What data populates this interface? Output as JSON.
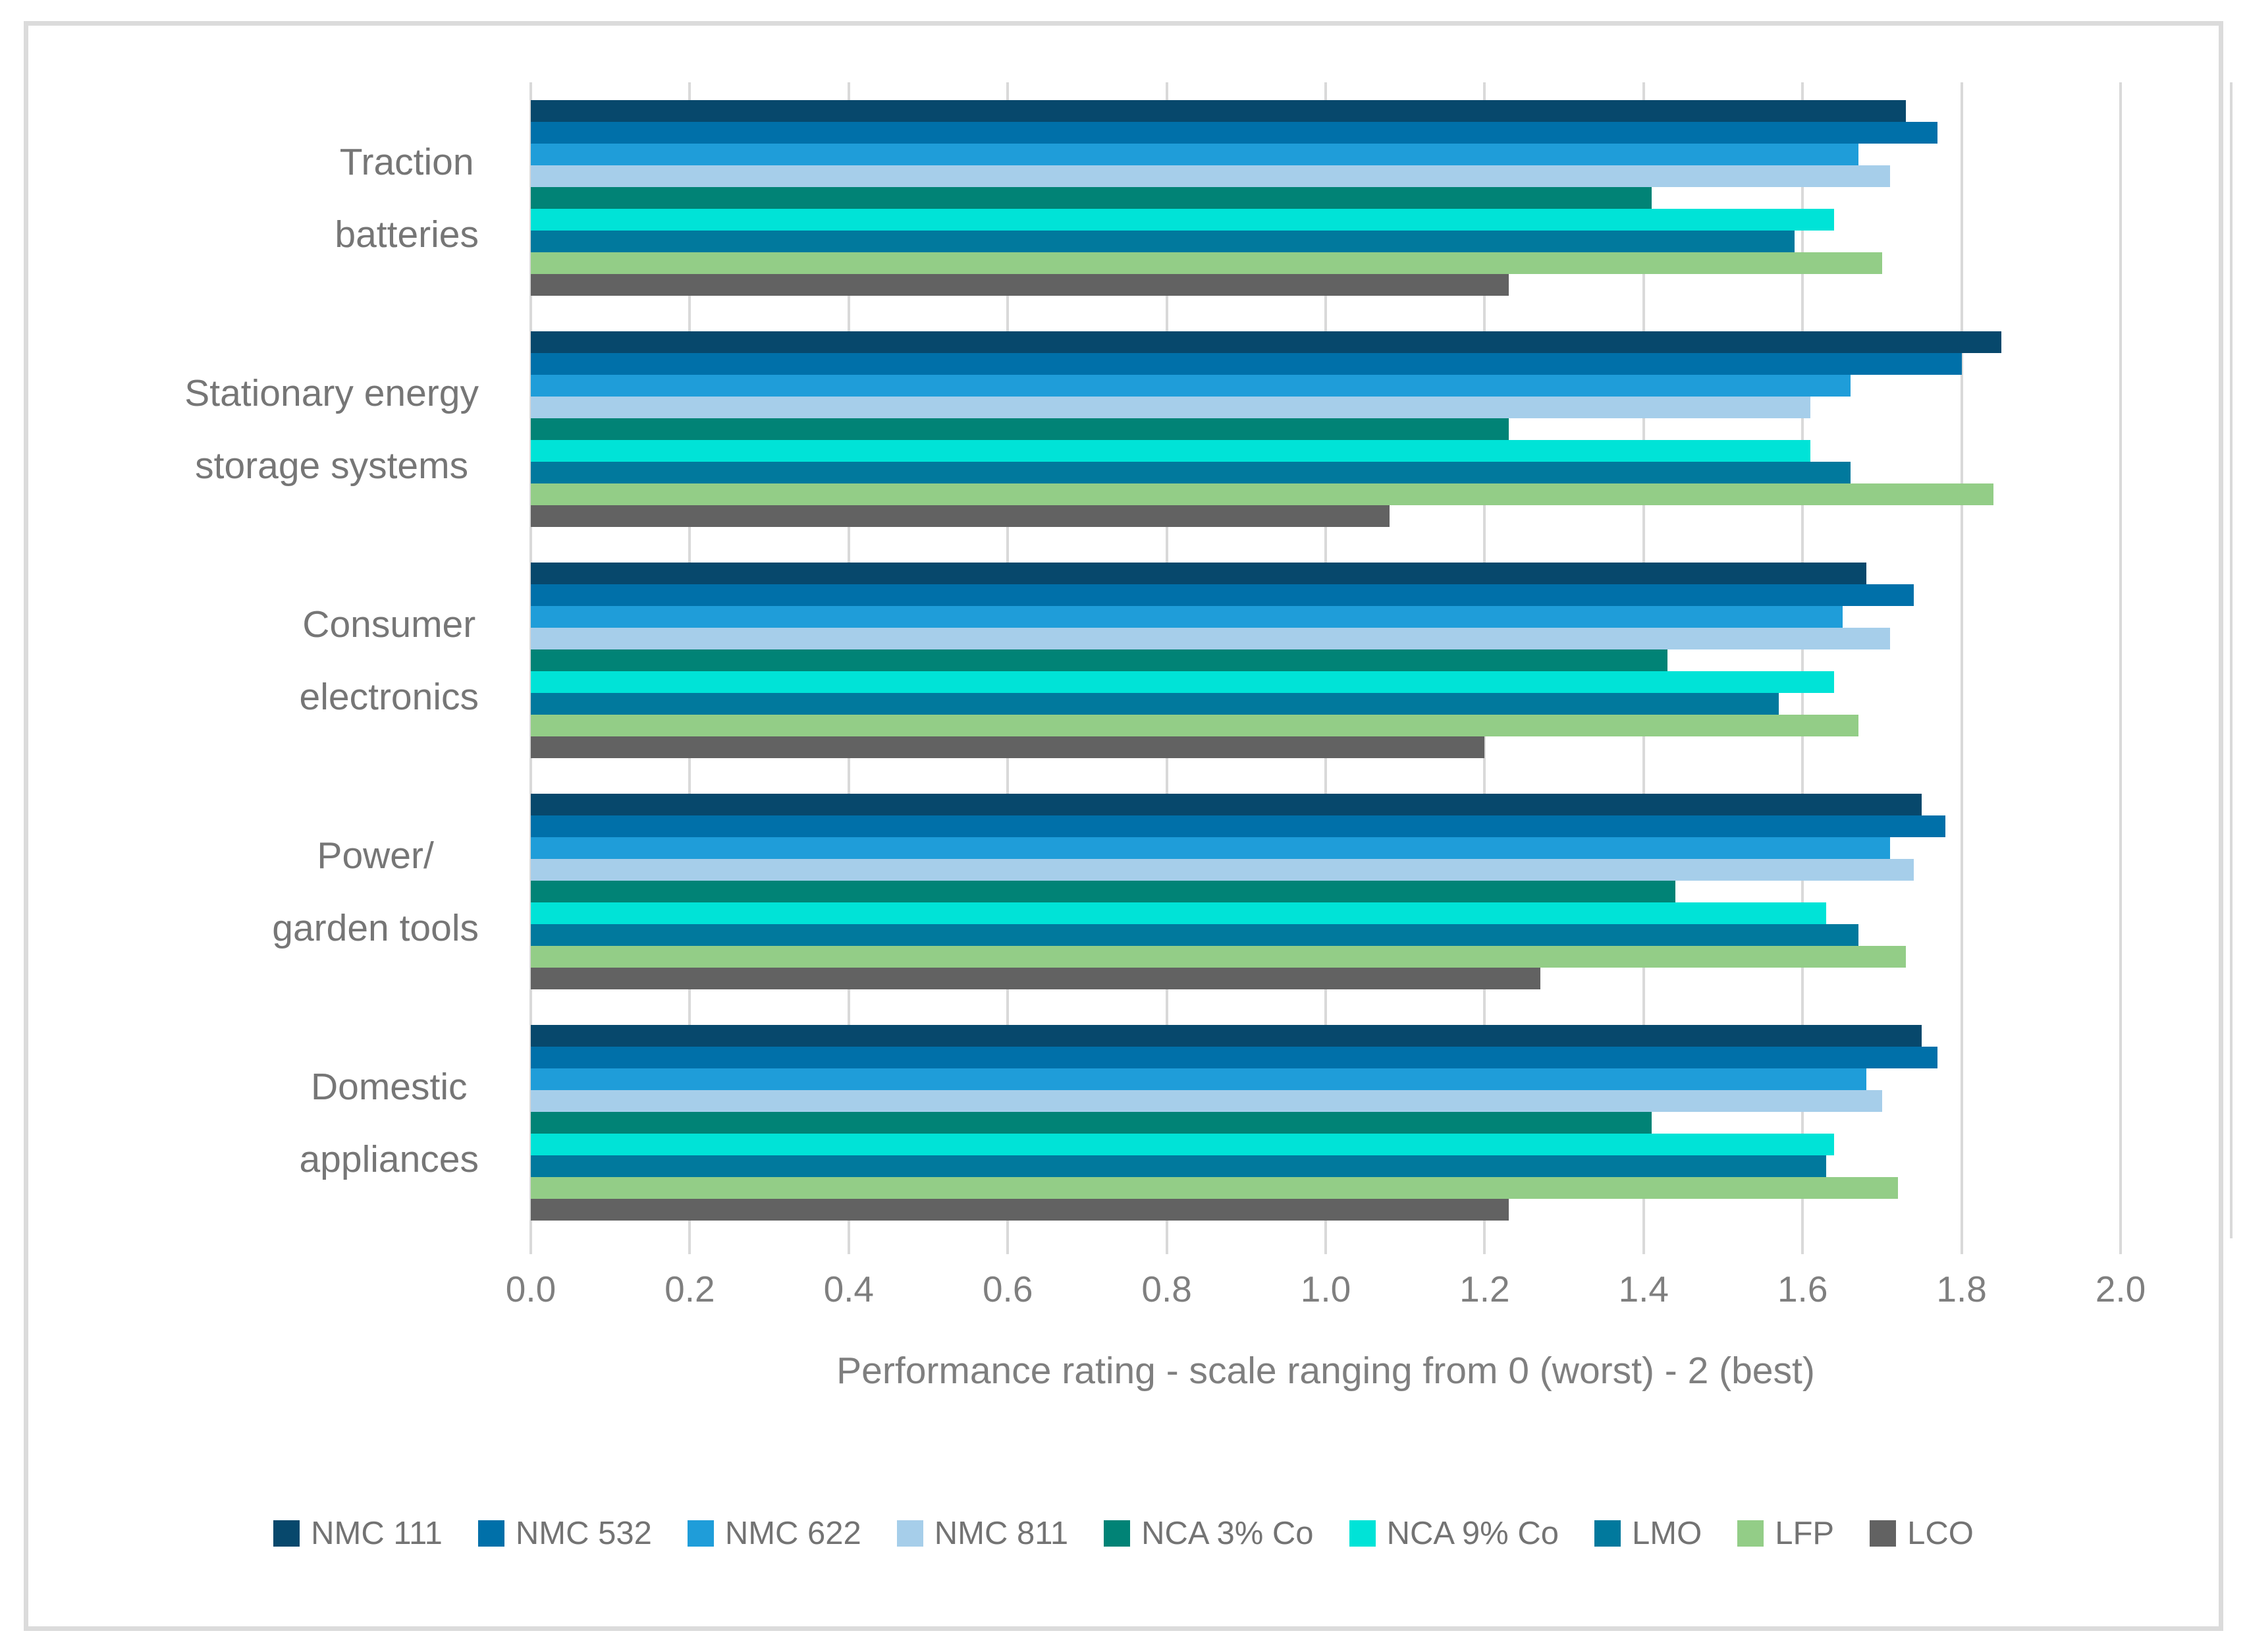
{
  "chart_data": {
    "type": "bar",
    "orientation": "horizontal",
    "xlabel": "Performance rating - scale ranging from 0 (worst) - 2 (best)",
    "x_ticks": [
      "0.0",
      "0.2",
      "0.4",
      "0.6",
      "0.8",
      "1.0",
      "1.2",
      "1.4",
      "1.6",
      "1.8",
      "2.0"
    ],
    "xlim": [
      0,
      2
    ],
    "grid": true,
    "legend_position": "bottom",
    "categories": [
      "Traction batteries",
      "Stationary energy storage systems",
      "Consumer electronics",
      "Power/ garden tools",
      "Domestic appliances"
    ],
    "category_label_lines": [
      [
        "Traction",
        "batteries"
      ],
      [
        "Stationary energy",
        "storage systems"
      ],
      [
        "Consumer",
        "electronics"
      ],
      [
        "Power/",
        "garden tools"
      ],
      [
        "Domestic",
        "appliances"
      ]
    ],
    "series": [
      {
        "name": "NMC 111",
        "color": "#07486C",
        "values": [
          1.73,
          1.85,
          1.68,
          1.75,
          1.75
        ]
      },
      {
        "name": "NMC 532",
        "color": "#0070A9",
        "values": [
          1.77,
          1.8,
          1.74,
          1.78,
          1.77
        ]
      },
      {
        "name": "NMC 622",
        "color": "#1F9DD9",
        "values": [
          1.67,
          1.66,
          1.65,
          1.71,
          1.68
        ]
      },
      {
        "name": "NMC 811",
        "color": "#A6CEEA",
        "values": [
          1.71,
          1.61,
          1.71,
          1.74,
          1.7
        ]
      },
      {
        "name": "NCA 3% Co",
        "color": "#018376",
        "values": [
          1.41,
          1.23,
          1.43,
          1.44,
          1.41
        ]
      },
      {
        "name": "NCA 9% Co",
        "color": "#00E3D7",
        "values": [
          1.64,
          1.61,
          1.64,
          1.63,
          1.64
        ]
      },
      {
        "name": "LMO",
        "color": "#01799D",
        "values": [
          1.59,
          1.66,
          1.57,
          1.67,
          1.63
        ]
      },
      {
        "name": "LFP",
        "color": "#93CD87",
        "values": [
          1.7,
          1.84,
          1.67,
          1.73,
          1.72
        ]
      },
      {
        "name": "LCO",
        "color": "#626262",
        "values": [
          1.23,
          1.08,
          1.2,
          1.27,
          1.23
        ]
      }
    ],
    "colors": {
      "gridline": "#D9D9D9",
      "axis_text": "#7F7F7F",
      "category_text": "#767676",
      "legend_text": "#737373",
      "frame_border": "#DBDBDB"
    }
  }
}
